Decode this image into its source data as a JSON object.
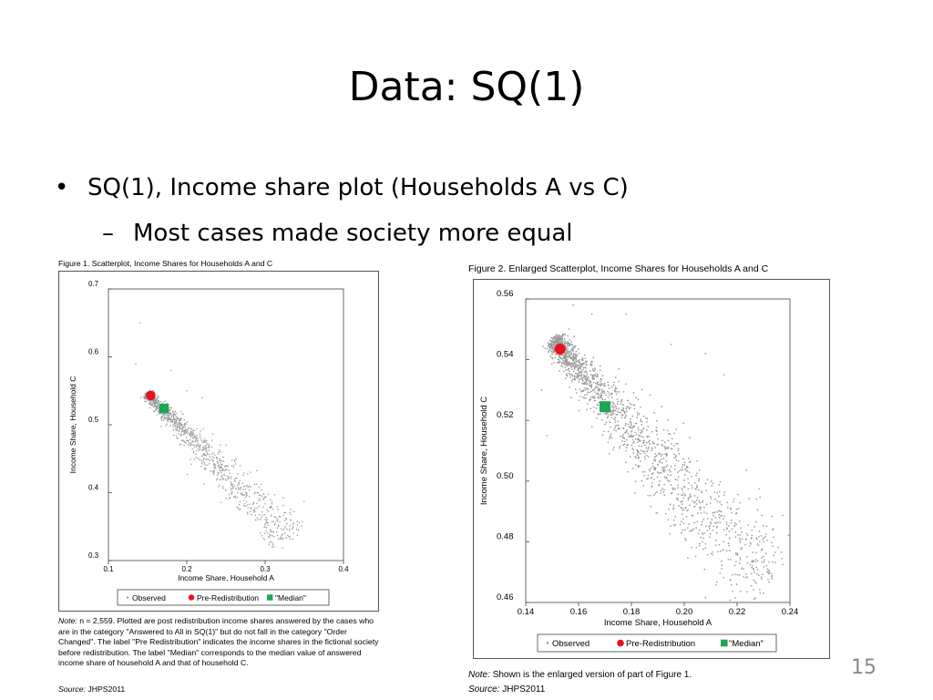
{
  "slide": {
    "title": "Data: SQ(1)",
    "bullet": "SQ(1), Income share plot (Households A vs C)",
    "sub_bullet": "Most cases made society more equal",
    "bullet_marker": "•",
    "sub_bullet_marker": "–",
    "page_number": "15"
  },
  "figure1": {
    "caption": "Figure 1. Scatterplot, Income Shares for Households A and C",
    "note_label": "Note:",
    "note_text": "n = 2,559. Plotted are post redistribution income shares answered by the cases who are in the category \"Answered to All in SQ(1)\" but do not fall in the category \"Order Changed\". The label \"Pre Redistribution\" indicates the income shares in the fictional society before redistribution. The label \"Median\" corresponds to the median value of answered income share of household A and that of household C.",
    "source_label": "Source:",
    "source_text": "JHPS2011"
  },
  "figure2": {
    "caption": "Figure 2. Enlarged Scatterplot, Income Shares for Households A and C",
    "note_label": "Note:",
    "note_text": "Shown is the enlarged version of part of Figure 1.",
    "source_label": "Source:",
    "source_text": "JHPS2011"
  },
  "chart_data": [
    {
      "type": "scatter",
      "title": "Figure 1. Scatterplot, Income Shares for Households A and C",
      "xlabel": "Income Share, Household A",
      "ylabel": "Income Share, Household C",
      "xlim": [
        0.1,
        0.4
      ],
      "ylim": [
        0.3,
        0.7
      ],
      "xticks": [
        "0.1",
        "0.2",
        "0.3",
        "0.4"
      ],
      "yticks": [
        "0.3",
        "0.4",
        "0.5",
        "0.6",
        "0.7"
      ],
      "legend": [
        "Observed",
        "Pre-Redistribution",
        "\"Median\""
      ],
      "legend_position": "bottom",
      "n": 2559,
      "series": [
        {
          "name": "Pre-Redistribution",
          "color": "#e8101a",
          "marker": "circle",
          "points": [
            [
              0.154,
              0.543
            ]
          ]
        },
        {
          "name": "\"Median\"",
          "color": "#1fa653",
          "marker": "square",
          "points": [
            [
              0.171,
              0.524
            ]
          ]
        },
        {
          "name": "Observed",
          "color": "#9a9a9a",
          "marker": "dot",
          "cluster": {
            "start": [
              0.15,
              0.545
            ],
            "end": [
              0.335,
              0.33
            ],
            "spread": 0.02
          },
          "outliers": [
            [
              0.14,
              0.65
            ],
            [
              0.135,
              0.59
            ],
            [
              0.2,
              0.55
            ],
            [
              0.22,
              0.54
            ],
            [
              0.25,
              0.47
            ],
            [
              0.29,
              0.4
            ],
            [
              0.3,
              0.36
            ],
            [
              0.33,
              0.335
            ],
            [
              0.18,
              0.58
            ]
          ]
        }
      ]
    },
    {
      "type": "scatter",
      "title": "Figure 2. Enlarged Scatterplot, Income Shares for Households A and C",
      "xlabel": "Income Share, Household A",
      "ylabel": "Income Share, Household C",
      "xlim": [
        0.14,
        0.24
      ],
      "ylim": [
        0.46,
        0.56
      ],
      "xticks": [
        "0.14",
        "0.16",
        "0.18",
        "0.20",
        "0.22",
        "0.24"
      ],
      "yticks": [
        "0.46",
        "0.48",
        "0.50",
        "0.52",
        "0.54",
        "0.56"
      ],
      "legend": [
        "Observed",
        "Pre-Redistribution",
        "\"Median\""
      ],
      "legend_position": "bottom",
      "series": [
        {
          "name": "Pre-Redistribution",
          "color": "#e8101a",
          "marker": "circle",
          "points": [
            [
              0.153,
              0.5435
            ]
          ]
        },
        {
          "name": "\"Median\"",
          "color": "#1fa653",
          "marker": "square",
          "points": [
            [
              0.17,
              0.5245
            ]
          ]
        },
        {
          "name": "Observed",
          "color": "#9a9a9a",
          "marker": "dot",
          "cluster": {
            "start": [
              0.151,
              0.546
            ],
            "end": [
              0.232,
              0.465
            ],
            "spread": 0.011
          },
          "outliers": [
            [
              0.158,
              0.558
            ],
            [
              0.165,
              0.555
            ],
            [
              0.178,
              0.555
            ],
            [
              0.208,
              0.542
            ],
            [
              0.215,
              0.535
            ],
            [
              0.195,
              0.545
            ],
            [
              0.146,
              0.53
            ],
            [
              0.148,
              0.515
            ]
          ]
        }
      ]
    }
  ]
}
